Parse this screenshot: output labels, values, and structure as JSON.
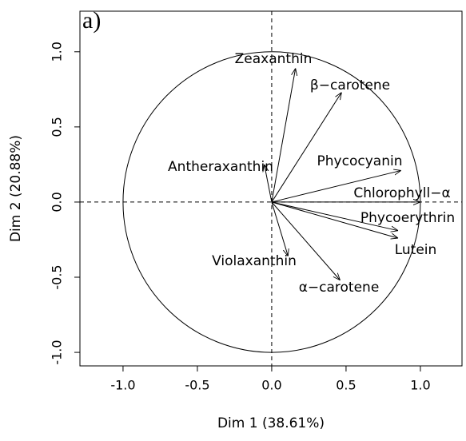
{
  "chart_data": {
    "type": "biplot",
    "panel_label": "a)",
    "xlabel": "Dim 1 (38.61%)",
    "ylabel": "Dim 2 (20.88%)",
    "xlim": [
      -1.29,
      1.28
    ],
    "ylim": [
      -1.09,
      1.27
    ],
    "xticks": [
      {
        "value": -1.0,
        "label": "-1.0"
      },
      -0.5,
      {
        "value": 0.0,
        "label": "0.0"
      },
      0.5,
      {
        "value": 1.0,
        "label": "1.0"
      }
    ],
    "yticks": [
      {
        "value": -1.0,
        "label": "-1.0"
      },
      -0.5,
      {
        "value": 0.0,
        "label": "0.0"
      },
      0.5,
      {
        "value": 1.0,
        "label": "1.0"
      }
    ],
    "variables": [
      {
        "name": "Zeaxanthin",
        "x": 0.16,
        "y": 0.89
      },
      {
        "name": "β−carotene",
        "x": 0.47,
        "y": 0.73
      },
      {
        "name": "Antheraxanthin",
        "x": -0.05,
        "y": 0.25
      },
      {
        "name": "Phycocyanin",
        "x": 0.87,
        "y": 0.21
      },
      {
        "name": "Chlorophyll−α",
        "x": 1.0,
        "y": 0.0
      },
      {
        "name": "Phycoerythrin",
        "x": 0.85,
        "y": -0.19
      },
      {
        "name": "Lutein",
        "x": 0.85,
        "y": -0.24
      },
      {
        "name": "Violaxanthin",
        "x": 0.11,
        "y": -0.36
      },
      {
        "name": "α−carotene",
        "x": 0.46,
        "y": -0.52
      }
    ]
  }
}
